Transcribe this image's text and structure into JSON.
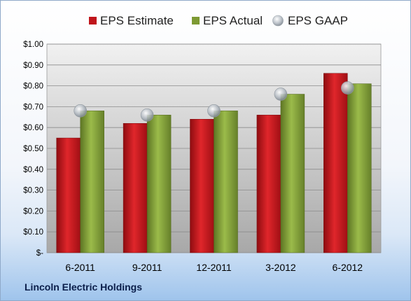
{
  "company": "Lincoln Electric Holdings",
  "colors": {
    "estimate": "#c0151b",
    "actual": "#7d9a33",
    "gaap": "#aab3bd"
  },
  "chart_data": {
    "type": "bar",
    "categories": [
      "6-2011",
      "9-2011",
      "12-2011",
      "3-2012",
      "6-2012"
    ],
    "series": [
      {
        "name": "EPS Estimate",
        "type": "bar",
        "values": [
          0.55,
          0.62,
          0.64,
          0.66,
          0.86
        ]
      },
      {
        "name": "EPS Actual",
        "type": "bar",
        "values": [
          0.68,
          0.66,
          0.68,
          0.76,
          0.81
        ]
      },
      {
        "name": "EPS GAAP",
        "type": "marker",
        "values": [
          0.68,
          0.66,
          0.68,
          0.76,
          0.79
        ]
      }
    ],
    "ylim": [
      0,
      1.0
    ],
    "yticks": [
      0,
      0.1,
      0.2,
      0.3,
      0.4,
      0.5,
      0.6,
      0.7,
      0.8,
      0.9,
      1.0
    ],
    "ytick_labels": [
      "$-",
      "$0.10",
      "$0.20",
      "$0.30",
      "$0.40",
      "$0.50",
      "$0.60",
      "$0.70",
      "$0.80",
      "$0.90",
      "$1.00"
    ],
    "grid": true,
    "legend_position": "top"
  }
}
